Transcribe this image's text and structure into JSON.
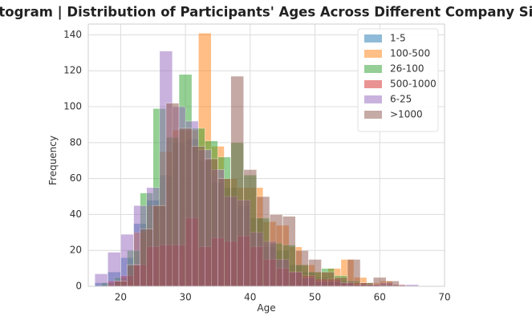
{
  "chart_data": {
    "type": "histogram",
    "title": "Histogram | Distribution of Participants' Ages Across Different Company Sizes",
    "xlabel": "Age",
    "ylabel": "Frequency",
    "xlim": [
      15,
      70
    ],
    "ylim": [
      0,
      146
    ],
    "xticks": [
      20,
      30,
      40,
      50,
      60,
      70
    ],
    "yticks": [
      0,
      20,
      40,
      60,
      80,
      100,
      120,
      140
    ],
    "grid": true,
    "legend": "upper right",
    "opacity": 0.5,
    "series": [
      {
        "name": "1-5",
        "color": "#1f77b4",
        "bins": [
          16,
          18,
          20,
          22,
          24,
          26,
          28,
          30,
          32,
          34,
          36,
          38,
          40,
          42,
          44,
          46,
          48,
          50,
          52,
          54,
          56,
          58,
          60,
          62
        ],
        "values": [
          2,
          8,
          16,
          35,
          48,
          62,
          80,
          82,
          70,
          58,
          55,
          45,
          38,
          22,
          20,
          12,
          8,
          5,
          4,
          3,
          1,
          1,
          1
        ]
      },
      {
        "name": "100-500",
        "color": "#ff7f0e",
        "bins": [
          18,
          20,
          22,
          24,
          26,
          28,
          30,
          32,
          34,
          36,
          38,
          40,
          42,
          44,
          46,
          48,
          50,
          52,
          54,
          56,
          58,
          60,
          62,
          64
        ],
        "values": [
          1,
          3,
          30,
          45,
          75,
          87,
          87,
          141,
          78,
          60,
          55,
          55,
          36,
          34,
          22,
          12,
          8,
          10,
          15,
          5,
          2,
          3,
          1
        ]
      },
      {
        "name": "26-100",
        "color": "#2ca02c",
        "bins": [
          17,
          19,
          21,
          23,
          25,
          27,
          29,
          31,
          33,
          35,
          37,
          39,
          41,
          43,
          45,
          47,
          49,
          51,
          53,
          55,
          57,
          59
        ],
        "values": [
          2,
          5,
          20,
          52,
          99,
          83,
          118,
          88,
          81,
          72,
          80,
          62,
          38,
          24,
          23,
          12,
          8,
          10,
          6,
          3,
          2
        ]
      },
      {
        "name": "500-1000",
        "color": "#d62728",
        "bins": [
          18,
          20,
          22,
          24,
          26,
          28,
          30,
          32,
          34,
          36,
          38,
          40,
          42,
          44,
          46,
          48,
          50,
          52,
          54,
          56,
          58,
          60
        ],
        "values": [
          3,
          6,
          12,
          22,
          23,
          23,
          38,
          22,
          27,
          25,
          28,
          22,
          15,
          10,
          8,
          6,
          4,
          4,
          2,
          2,
          1
        ]
      },
      {
        "name": "6-25",
        "color": "#9467bd",
        "bins": [
          16,
          18,
          20,
          22,
          24,
          26,
          28,
          30,
          32,
          34,
          36,
          38,
          40,
          42,
          44,
          46,
          48,
          50,
          52,
          54,
          56,
          58,
          60,
          62,
          64,
          66
        ],
        "values": [
          7,
          19,
          29,
          45,
          55,
          131,
          100,
          92,
          76,
          65,
          50,
          48,
          30,
          25,
          15,
          8,
          5,
          3,
          3,
          2,
          1,
          1,
          2,
          1,
          1
        ]
      },
      {
        "name": ">1000",
        "color": "#8c564b",
        "bins": [
          19,
          21,
          23,
          25,
          27,
          29,
          31,
          33,
          35,
          37,
          39,
          41,
          43,
          45,
          47,
          49,
          51,
          53,
          55,
          57,
          59,
          61,
          63
        ],
        "values": [
          3,
          12,
          32,
          45,
          102,
          88,
          78,
          71,
          60,
          117,
          65,
          50,
          40,
          39,
          20,
          15,
          8,
          5,
          15,
          2,
          5,
          3
        ]
      }
    ]
  }
}
